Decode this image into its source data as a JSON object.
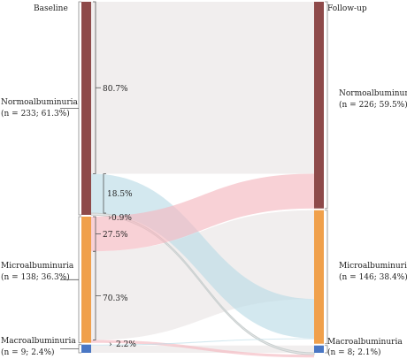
{
  "chart_data": {
    "type": "sankey",
    "left": {
      "title": "Baseline",
      "nodes": [
        {
          "name": "Normoalbuminuria",
          "detail": "(n = 233; 61.3%)",
          "count": 233,
          "color": "#8e4a4a"
        },
        {
          "name": "Microalbuminuria",
          "detail": "(n = 138; 36.3%)",
          "count": 138,
          "color": "#f0a04b"
        },
        {
          "name": "Macroalbuminuria",
          "detail": "(n = 9; 2.4%)",
          "count": 9,
          "color": "#4a77c4"
        }
      ]
    },
    "right": {
      "title": "Follow-up",
      "nodes": [
        {
          "name": "Normoalbuminuria",
          "detail": "(n = 226; 59.5%)",
          "count": 226,
          "color": "#8e4a4a"
        },
        {
          "name": "Microalbuminuria",
          "detail": "(n = 146; 38.4%)",
          "count": 146,
          "color": "#f0a04b"
        },
        {
          "name": "Macroalbuminuria",
          "detail": "(n = 8; 2.1%)",
          "count": 8,
          "color": "#4a77c4"
        }
      ]
    },
    "flows": [
      {
        "from": 0,
        "to": 0,
        "percent": 80.7,
        "label": "80.7%",
        "color": "#ece8e8"
      },
      {
        "from": 0,
        "to": 1,
        "percent": 18.5,
        "label": "18.5%",
        "color": "#bcdbe6"
      },
      {
        "from": 0,
        "to": 2,
        "percent": 0.9,
        "label": "0.9%",
        "color": "#d8dcdc"
      },
      {
        "from": 1,
        "to": 0,
        "percent": 27.5,
        "label": "27.5%",
        "color": "#f4b8c0"
      },
      {
        "from": 1,
        "to": 1,
        "percent": 70.3,
        "label": "70.3%",
        "color": "#ece8e8"
      },
      {
        "from": 1,
        "to": 2,
        "percent": 2.2,
        "label": "2.2%",
        "color": "#f4b8c0"
      },
      {
        "from": 2,
        "to": 1,
        "percent": 11.1,
        "label": "",
        "color": "#bcdbe6"
      },
      {
        "from": 2,
        "to": 2,
        "percent": 88.9,
        "label": "",
        "color": "#ece8e8"
      }
    ]
  }
}
